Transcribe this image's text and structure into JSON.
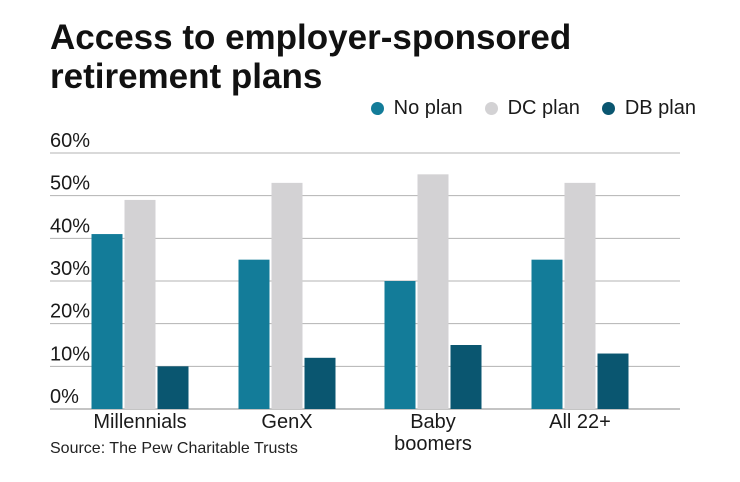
{
  "chart_data": {
    "type": "bar",
    "title_lines": [
      "Access to employer-sponsored",
      "retirement plans"
    ],
    "categories": [
      [
        "Millennials"
      ],
      [
        "GenX"
      ],
      [
        "Baby",
        "boomers"
      ],
      [
        "All 22+"
      ]
    ],
    "series": [
      {
        "name": "No plan",
        "color": "#137c99",
        "values": [
          41,
          35,
          30,
          35
        ]
      },
      {
        "name": "DC plan",
        "color": "#d3d2d4",
        "values": [
          49,
          53,
          55,
          53
        ]
      },
      {
        "name": "DB plan",
        "color": "#0a5670",
        "values": [
          10,
          12,
          15,
          13
        ]
      }
    ],
    "yticks": [
      "0%",
      "10%",
      "20%",
      "30%",
      "40%",
      "50%",
      "60%"
    ],
    "ylim": [
      0,
      60
    ],
    "ystep": 10,
    "grid": true,
    "legend_position": "top-right",
    "xlabel": "",
    "ylabel": ""
  },
  "source": "Source: The Pew Charitable Trusts"
}
